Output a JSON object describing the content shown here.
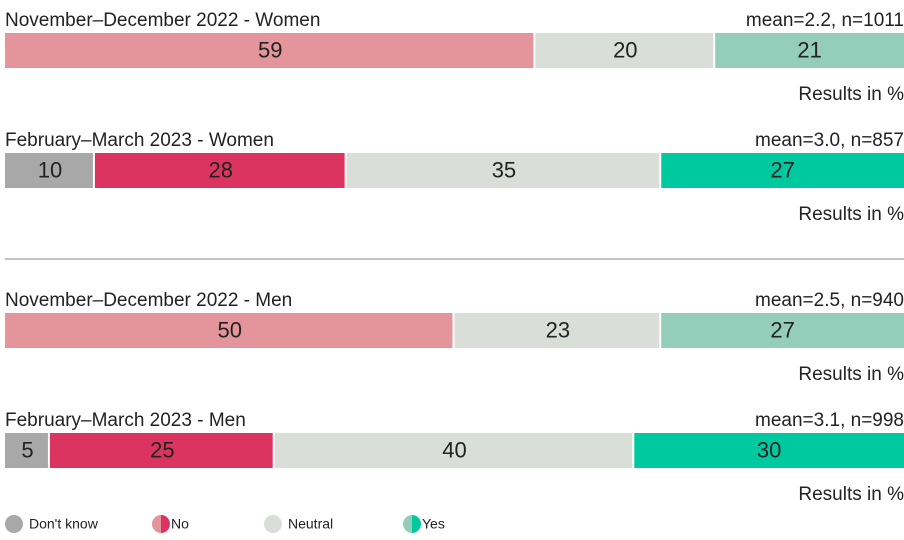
{
  "chart_data": [
    {
      "type": "bar",
      "title": "November–December 2022 - Women",
      "subtitle": "mean=2.2, n=1011",
      "note": "Results in %",
      "xlim": [
        0,
        100
      ],
      "values": [
        59,
        20,
        21
      ],
      "colors": [
        "#e3959b",
        "#d9dfd8",
        "#94cdb9"
      ]
    },
    {
      "type": "bar",
      "title": "February–March 2023 - Women",
      "subtitle": "mean=3.0, n=857",
      "note": "Results in %",
      "xlim": [
        0,
        100
      ],
      "values": [
        10,
        28,
        35,
        27
      ],
      "colors": [
        "#a8a8a8",
        "#dc3461",
        "#d9dfd8",
        "#00c99f"
      ]
    },
    {
      "type": "bar",
      "title": "November–December 2022 - Men",
      "subtitle": "mean=2.5, n=940",
      "note": "Results in %",
      "xlim": [
        0,
        100
      ],
      "values": [
        50,
        23,
        27
      ],
      "colors": [
        "#e3959b",
        "#d9dfd8",
        "#94cdb9"
      ]
    },
    {
      "type": "bar",
      "title": "February–March 2023 - Men",
      "subtitle": "mean=3.1, n=998",
      "note": "Results in %",
      "xlim": [
        0,
        100
      ],
      "values": [
        5,
        25,
        40,
        30
      ],
      "colors": [
        "#a8a8a8",
        "#dc3461",
        "#d9dfd8",
        "#00c99f"
      ]
    }
  ],
  "legend": [
    {
      "name": "Don't know",
      "colors": [
        "#a8a8a8"
      ]
    },
    {
      "name": "No",
      "colors": [
        "#e3959b",
        "#dc3461"
      ]
    },
    {
      "name": "Neutral",
      "colors": [
        "#d9dfd8"
      ]
    },
    {
      "name": "Yes",
      "colors": [
        "#94cdb9",
        "#00c99f"
      ]
    }
  ]
}
